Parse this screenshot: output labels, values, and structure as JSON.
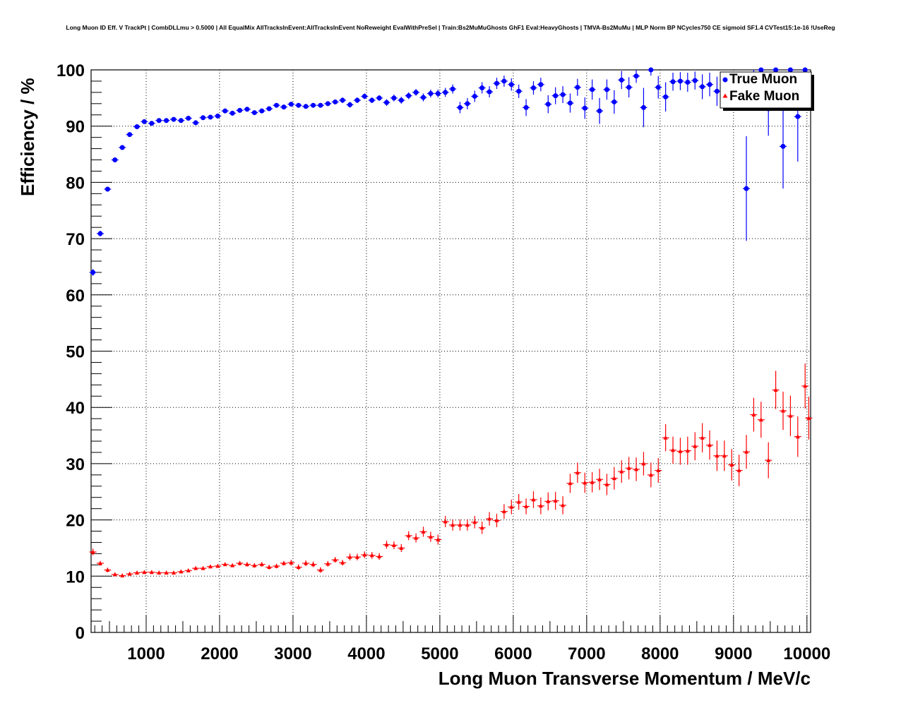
{
  "chart_data": {
    "type": "scatter",
    "title": "Long Muon ID Eff. V TrackPt | CombDLLmu > 0.5000 | All EqualMix AllTracksInEvent:AllTracksInEvent NoReweight EvalWithPreSel | Train:Bs2MuMuGhosts GhF1 Eval:HeavyGhosts | TMVA-Bs2MuMu | MLP Norm BP NCycles750 CE sigmoid SF1.4 CVTest15:1e-16 !UseReg",
    "xlabel": "Long Muon Transverse Momentum / MeV/c",
    "ylabel": "Efficiency / %",
    "xlim": [
      250,
      10050
    ],
    "ylim": [
      0,
      100
    ],
    "x_ticks": [
      1000,
      2000,
      3000,
      4000,
      5000,
      6000,
      7000,
      8000,
      9000,
      10000
    ],
    "y_ticks": [
      0,
      10,
      20,
      30,
      40,
      50,
      60,
      70,
      80,
      90,
      100
    ],
    "grid": true,
    "legend_position": "top-right",
    "series": [
      {
        "name": "True Muon",
        "color": "#0000ff",
        "marker": "circle",
        "x": [
          275,
          375,
          475,
          575,
          675,
          775,
          875,
          975,
          1075,
          1175,
          1275,
          1375,
          1475,
          1575,
          1675,
          1775,
          1875,
          1975,
          2075,
          2175,
          2275,
          2375,
          2475,
          2575,
          2675,
          2775,
          2875,
          2975,
          3075,
          3175,
          3275,
          3375,
          3475,
          3575,
          3675,
          3775,
          3875,
          3975,
          4075,
          4175,
          4275,
          4375,
          4475,
          4575,
          4675,
          4775,
          4875,
          4975,
          5075,
          5175,
          5275,
          5375,
          5475,
          5575,
          5675,
          5775,
          5875,
          5975,
          6075,
          6175,
          6275,
          6375,
          6475,
          6575,
          6675,
          6775,
          6875,
          6975,
          7075,
          7175,
          7275,
          7375,
          7475,
          7575,
          7675,
          7775,
          7875,
          7975,
          8075,
          8175,
          8275,
          8375,
          8475,
          8575,
          8675,
          8775,
          8875,
          8975,
          9075,
          9175,
          9275,
          9375,
          9475,
          9575,
          9675,
          9775,
          9875,
          9975,
          10025
        ],
        "y": [
          64.0,
          70.9,
          78.8,
          84.0,
          86.2,
          88.5,
          89.9,
          90.8,
          90.5,
          91.0,
          91.0,
          91.2,
          91.0,
          91.4,
          90.6,
          91.5,
          91.6,
          91.8,
          92.7,
          92.3,
          92.8,
          93.0,
          92.4,
          92.7,
          93.1,
          93.7,
          93.4,
          93.9,
          93.7,
          93.5,
          93.7,
          93.7,
          94.0,
          94.3,
          94.6,
          93.8,
          94.6,
          95.3,
          94.6,
          95.0,
          94.2,
          95.0,
          94.6,
          95.4,
          96.0,
          95.1,
          95.8,
          95.8,
          96.0,
          96.6,
          93.3,
          94.0,
          95.3,
          96.8,
          96.1,
          97.6,
          98.0,
          97.4,
          96.2,
          93.3,
          96.8,
          97.4,
          93.9,
          95.4,
          95.6,
          94.1,
          96.9,
          93.2,
          96.5,
          92.7,
          96.5,
          94.3,
          98.2,
          96.9,
          98.9,
          93.3,
          100.0,
          96.9,
          95.2,
          97.9,
          98.0,
          97.8,
          98.1,
          97.0,
          97.4,
          96.2,
          97.3,
          96.6,
          96.0,
          78.9,
          97.5,
          100.0,
          93.1,
          100.0,
          86.4,
          100.0,
          91.7,
          100.0,
          97.0
        ],
        "yerr": [
          0.6,
          0.5,
          0.4,
          0.4,
          0.3,
          0.3,
          0.3,
          0.3,
          0.3,
          0.3,
          0.3,
          0.3,
          0.3,
          0.3,
          0.3,
          0.3,
          0.3,
          0.3,
          0.3,
          0.3,
          0.3,
          0.3,
          0.3,
          0.3,
          0.3,
          0.4,
          0.4,
          0.4,
          0.4,
          0.4,
          0.4,
          0.4,
          0.4,
          0.4,
          0.5,
          0.5,
          0.5,
          0.5,
          0.5,
          0.5,
          0.6,
          0.6,
          0.6,
          0.6,
          0.6,
          0.7,
          0.7,
          0.7,
          0.8,
          0.8,
          1.0,
          1.0,
          1.0,
          1.0,
          1.0,
          1.0,
          1.0,
          1.1,
          1.2,
          1.5,
          1.2,
          1.2,
          1.6,
          1.5,
          1.5,
          1.7,
          1.5,
          1.9,
          1.8,
          2.3,
          1.8,
          2.1,
          1.6,
          1.8,
          1.2,
          3.5,
          1.0,
          2.0,
          2.6,
          1.6,
          1.6,
          1.7,
          1.6,
          2.2,
          2.1,
          2.6,
          2.3,
          2.6,
          3.0,
          9.3,
          2.5,
          0.7,
          4.8,
          0.5,
          7.5,
          0.5,
          8.0,
          0.5,
          2.5
        ]
      },
      {
        "name": "Fake Muon",
        "color": "#ff0000",
        "marker": "triangle",
        "x": [
          275,
          375,
          475,
          575,
          675,
          775,
          875,
          975,
          1075,
          1175,
          1275,
          1375,
          1475,
          1575,
          1675,
          1775,
          1875,
          1975,
          2075,
          2175,
          2275,
          2375,
          2475,
          2575,
          2675,
          2775,
          2875,
          2975,
          3075,
          3175,
          3275,
          3375,
          3475,
          3575,
          3675,
          3775,
          3875,
          3975,
          4075,
          4175,
          4275,
          4375,
          4475,
          4575,
          4675,
          4775,
          4875,
          4975,
          5075,
          5175,
          5275,
          5375,
          5475,
          5575,
          5675,
          5775,
          5875,
          5975,
          6075,
          6175,
          6275,
          6375,
          6475,
          6575,
          6675,
          6775,
          6875,
          6975,
          7075,
          7175,
          7275,
          7375,
          7475,
          7575,
          7675,
          7775,
          7875,
          7975,
          8075,
          8175,
          8275,
          8375,
          8475,
          8575,
          8675,
          8775,
          8875,
          8975,
          9075,
          9175,
          9275,
          9375,
          9475,
          9575,
          9675,
          9775,
          9875,
          9975,
          10025
        ],
        "y": [
          14.3,
          12.3,
          11.1,
          10.3,
          10.1,
          10.4,
          10.6,
          10.7,
          10.7,
          10.6,
          10.6,
          10.6,
          10.8,
          11.0,
          11.4,
          11.4,
          11.7,
          11.8,
          12.1,
          11.9,
          12.3,
          12.1,
          11.9,
          12.1,
          11.6,
          11.8,
          12.3,
          12.4,
          11.6,
          12.3,
          12.1,
          11.1,
          12.2,
          12.9,
          12.4,
          13.4,
          13.4,
          13.8,
          13.7,
          13.5,
          15.6,
          15.5,
          15.0,
          17.2,
          16.8,
          17.9,
          17.0,
          16.5,
          19.7,
          19.1,
          19.1,
          19.1,
          19.6,
          18.6,
          20.2,
          19.9,
          21.5,
          22.3,
          23.2,
          22.4,
          23.6,
          22.5,
          23.3,
          23.4,
          22.6,
          26.5,
          28.4,
          26.6,
          26.7,
          27.2,
          26.3,
          27.4,
          28.6,
          29.2,
          29.0,
          30.0,
          28.0,
          28.8,
          34.6,
          32.4,
          32.2,
          32.3,
          33.1,
          34.6,
          33.3,
          31.4,
          31.4,
          29.8,
          28.8,
          32.1,
          38.7,
          37.8,
          30.6,
          43.1,
          39.4,
          38.5,
          34.8,
          43.8,
          38.1
        ],
        "yerr": [
          0.6,
          0.4,
          0.4,
          0.3,
          0.3,
          0.3,
          0.3,
          0.3,
          0.3,
          0.3,
          0.3,
          0.3,
          0.3,
          0.3,
          0.3,
          0.3,
          0.3,
          0.3,
          0.3,
          0.3,
          0.4,
          0.4,
          0.4,
          0.4,
          0.4,
          0.4,
          0.4,
          0.5,
          0.5,
          0.5,
          0.5,
          0.5,
          0.5,
          0.5,
          0.5,
          0.6,
          0.6,
          0.6,
          0.6,
          0.6,
          0.7,
          0.7,
          0.7,
          0.8,
          0.8,
          0.9,
          0.9,
          0.9,
          1.0,
          1.0,
          1.0,
          1.0,
          1.1,
          1.1,
          1.2,
          1.2,
          1.3,
          1.3,
          1.4,
          1.4,
          1.5,
          1.5,
          1.6,
          1.6,
          1.6,
          1.7,
          1.8,
          1.8,
          1.8,
          1.9,
          1.9,
          2.0,
          2.0,
          2.0,
          2.1,
          2.1,
          2.2,
          2.2,
          2.4,
          2.4,
          2.4,
          2.5,
          2.5,
          2.6,
          2.6,
          2.7,
          2.7,
          2.8,
          2.8,
          3.0,
          3.0,
          3.2,
          3.2,
          3.4,
          3.4,
          3.6,
          3.6,
          4.0,
          3.8
        ]
      }
    ]
  }
}
